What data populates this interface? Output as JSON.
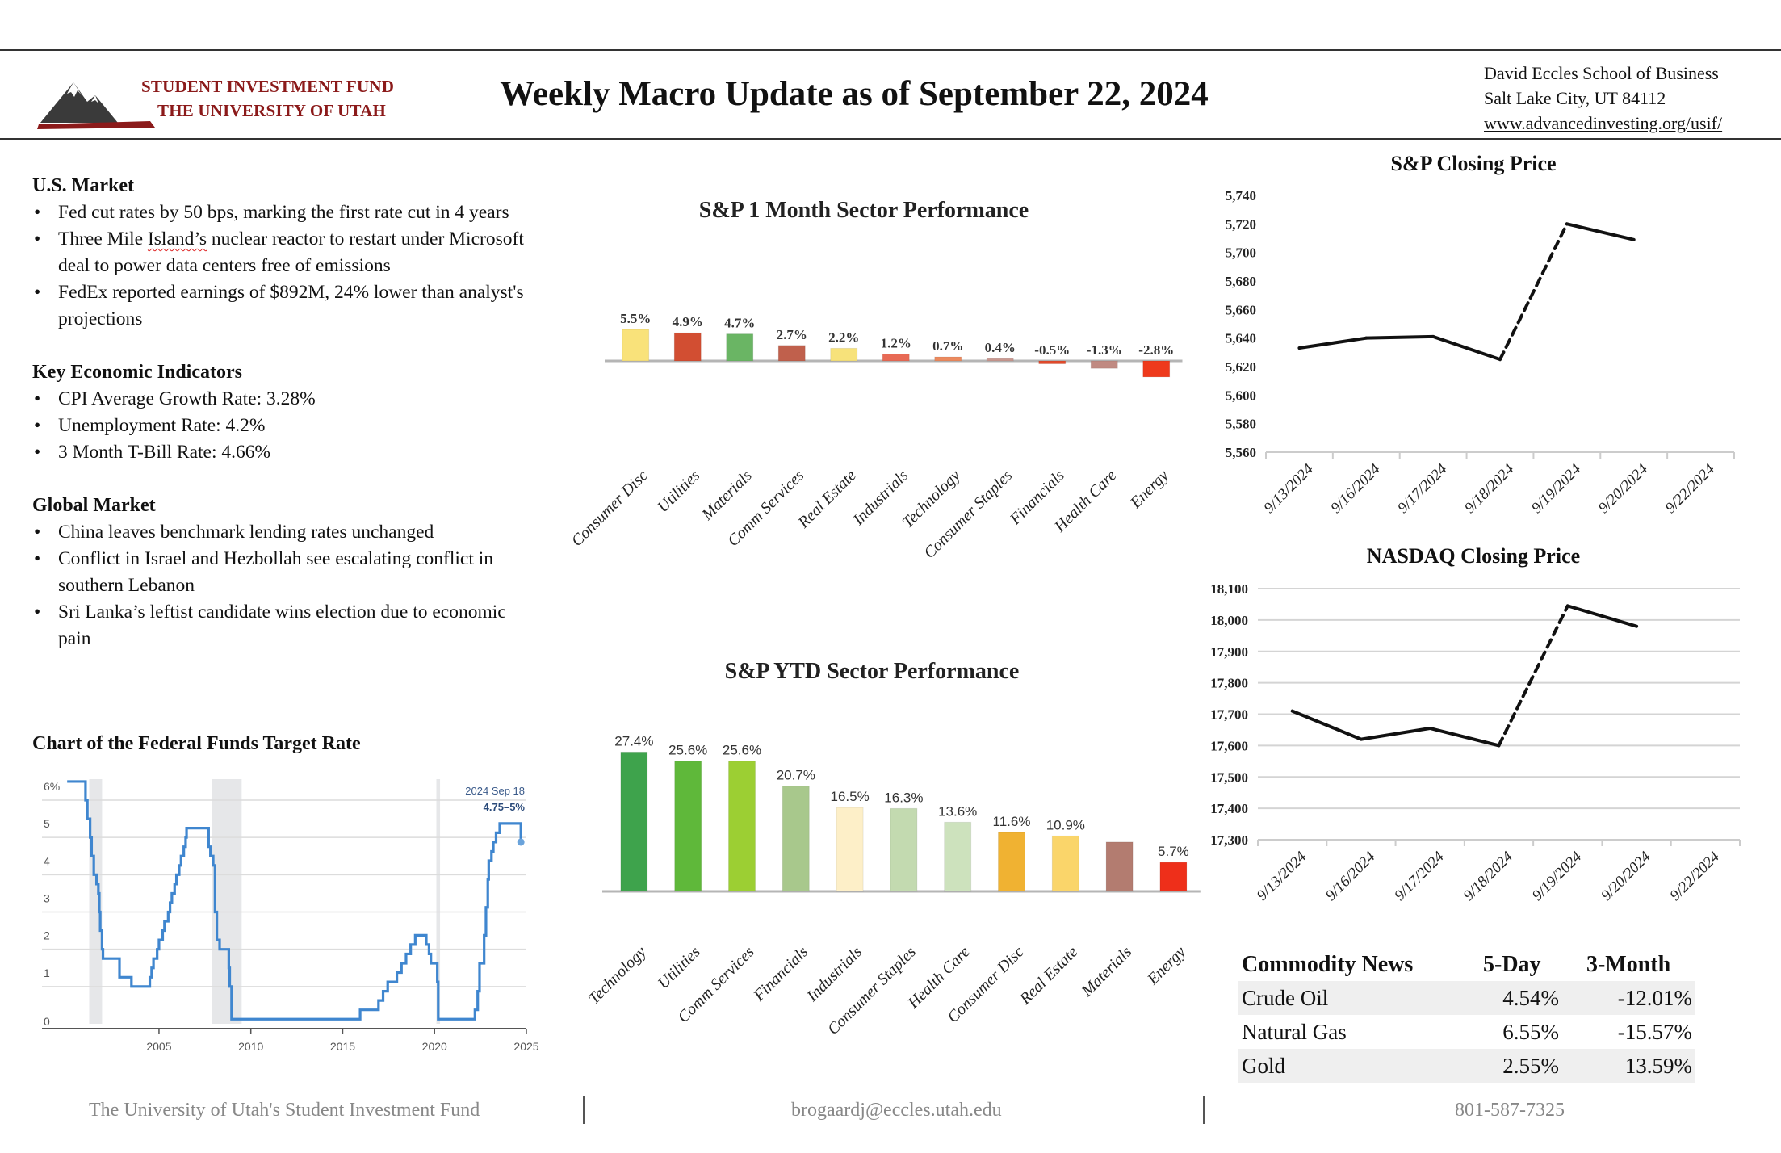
{
  "header": {
    "logo_line1": "STUDENT INVESTMENT FUND",
    "logo_line2": "THE UNIVERSITY OF UTAH",
    "title": "Weekly Macro Update as of September 22, 2024",
    "address_line1": "David Eccles School of Business",
    "address_line2": "Salt Lake City, UT 84112",
    "website": "www.advancedinvesting.org/usif/"
  },
  "us_market": {
    "title": "U.S. Market",
    "bullets": [
      "Fed cut rates by 50 bps, marking the first rate cut in 4 years",
      "Three Mile Island’s nuclear reactor to restart under Microsoft deal to power data centers free of emissions",
      "FedEx reported earnings of $892M, 24% lower than analyst's projections"
    ]
  },
  "indicators": {
    "title": "Key Economic Indicators",
    "bullets": [
      "CPI Average Growth Rate: 3.28%",
      "Unemployment Rate: 4.2%",
      "3 Month T-Bill Rate: 4.66%"
    ]
  },
  "global_market": {
    "title": "Global Market",
    "bullets": [
      "China leaves benchmark lending rates unchanged",
      "Conflict in Israel and Hezbollah see escalating conflict in southern Lebanon",
      "Sri Lanka’s leftist candidate wins election due to economic pain"
    ]
  },
  "commodity": {
    "headers": [
      "Commodity News",
      "5-Day",
      "3-Month"
    ],
    "rows": [
      {
        "name": "Crude Oil",
        "five_day": "4.54%",
        "three_month": "-12.01%"
      },
      {
        "name": "Natural Gas",
        "five_day": "6.55%",
        "three_month": "-15.57%"
      },
      {
        "name": "Gold",
        "five_day": "2.55%",
        "three_month": "13.59%"
      }
    ]
  },
  "footer": {
    "org": "The University of Utah's Student Investment Fund",
    "email": "brogaardj@eccles.utah.edu",
    "phone": "801-587-7325"
  },
  "colors": {
    "brand_red": "#8b1a1a",
    "fed_line": "#3f86cf",
    "recession_shade": "#e6e7e9"
  },
  "chart_data": [
    {
      "id": "m1",
      "type": "bar",
      "title": "S&P 1 Month Sector Performance",
      "categories": [
        "Consumer Disc",
        "Utilities",
        "Materials",
        "Comm Services",
        "Real Estate",
        "Industrials",
        "Technology",
        "Consumer Staples",
        "Financials",
        "Health Care",
        "Energy"
      ],
      "values": [
        5.5,
        4.9,
        4.7,
        2.7,
        2.2,
        1.2,
        0.7,
        0.4,
        -0.5,
        -1.3,
        -2.8
      ],
      "labels": [
        "5.5%",
        "4.9%",
        "4.7%",
        "2.7%",
        "2.2%",
        "1.2%",
        "0.7%",
        "0.4%",
        "-0.5%",
        "-1.3%",
        "-2.8%"
      ],
      "colors": [
        "#f9e27a",
        "#d24e32",
        "#6ab564",
        "#c0604c",
        "#f7e27a",
        "#e86a55",
        "#ec8a5e",
        "#c99890",
        "#e24a2b",
        "#c08a82",
        "#ee3a1c"
      ],
      "xlabel": "",
      "ylabel": "",
      "ylim": [
        -3,
        6
      ]
    },
    {
      "id": "ytd",
      "type": "bar",
      "title": "S&P YTD Sector Performance",
      "categories": [
        "Technology",
        "Utilities",
        "Comm Services",
        "Financials",
        "Industrials",
        "Consumer Staples",
        "Health Care",
        "Consumer Disc",
        "Real Estate",
        "Materials",
        "Energy"
      ],
      "values": [
        27.4,
        25.6,
        25.6,
        20.7,
        16.5,
        16.3,
        13.6,
        11.6,
        10.9,
        9.7,
        5.7
      ],
      "labels": [
        "27.4%",
        "25.6%",
        "25.6%",
        "20.7%",
        "16.5%",
        "16.3%",
        "13.6%",
        "11.6%",
        "10.9%",
        "",
        "5.7%"
      ],
      "colors": [
        "#3ea34c",
        "#5fb83a",
        "#9ccf33",
        "#a8c88c",
        "#fdefc8",
        "#c3dab0",
        "#cde2bd",
        "#f0b232",
        "#fad56a",
        "#b37c70",
        "#ee2f1a"
      ],
      "xlabel": "",
      "ylabel": "",
      "ylim": [
        0,
        28
      ]
    },
    {
      "id": "sp",
      "type": "line",
      "title": "S&P Closing Price",
      "x": [
        "9/13/2024",
        "9/16/2024",
        "9/17/2024",
        "9/18/2024",
        "9/19/2024",
        "9/20/2024",
        "9/22/2024"
      ],
      "values": [
        5633,
        5640,
        5641,
        5625,
        5720,
        5709,
        null
      ],
      "dashed_segments": [
        [
          3,
          4
        ]
      ],
      "ylim": [
        5560,
        5740
      ],
      "yticks": [
        "5,560",
        "5,580",
        "5,600",
        "5,620",
        "5,640",
        "5,660",
        "5,680",
        "5,700",
        "5,720",
        "5,740"
      ],
      "grid": false
    },
    {
      "id": "nq",
      "type": "line",
      "title": "NASDAQ Closing Price",
      "x": [
        "9/13/2024",
        "9/16/2024",
        "9/17/2024",
        "9/18/2024",
        "9/19/2024",
        "9/20/2024",
        "9/22/2024"
      ],
      "values": [
        17710,
        17620,
        17655,
        17600,
        18045,
        17980,
        null
      ],
      "dashed_segments": [
        [
          3,
          4
        ]
      ],
      "ylim": [
        17300,
        18100
      ],
      "yticks": [
        "17,300",
        "17,400",
        "17,500",
        "17,600",
        "17,700",
        "17,800",
        "17,900",
        "18,000",
        "18,100"
      ],
      "grid": true
    },
    {
      "id": "fed",
      "type": "line",
      "title": "Chart of the Federal Funds Target Rate",
      "xlim": [
        2000,
        2025
      ],
      "ylim": [
        0,
        6.5
      ],
      "yticks": [
        "0",
        "1",
        "2",
        "3",
        "4",
        "5",
        "6%"
      ],
      "xticks": [
        "2005",
        "2010",
        "2015",
        "2020",
        "2025"
      ],
      "recessions": [
        [
          2001.2,
          2001.9
        ],
        [
          2007.9,
          2009.5
        ],
        [
          2020.1,
          2020.3
        ]
      ],
      "annotation_date": "2024 Sep 18",
      "annotation_value": "4.75–5%",
      "steps": [
        [
          2000.0,
          6.5
        ],
        [
          2001.0,
          6.0
        ],
        [
          2001.1,
          5.5
        ],
        [
          2001.25,
          5.0
        ],
        [
          2001.33,
          4.5
        ],
        [
          2001.45,
          4.0
        ],
        [
          2001.6,
          3.75
        ],
        [
          2001.7,
          3.5
        ],
        [
          2001.75,
          3.0
        ],
        [
          2001.8,
          2.5
        ],
        [
          2001.9,
          2.0
        ],
        [
          2001.95,
          1.75
        ],
        [
          2002.85,
          1.25
        ],
        [
          2003.5,
          1.0
        ],
        [
          2004.5,
          1.25
        ],
        [
          2004.6,
          1.5
        ],
        [
          2004.7,
          1.75
        ],
        [
          2004.9,
          2.0
        ],
        [
          2005.0,
          2.25
        ],
        [
          2005.2,
          2.5
        ],
        [
          2005.3,
          2.75
        ],
        [
          2005.5,
          3.0
        ],
        [
          2005.6,
          3.25
        ],
        [
          2005.7,
          3.5
        ],
        [
          2005.85,
          3.75
        ],
        [
          2005.95,
          4.0
        ],
        [
          2006.1,
          4.25
        ],
        [
          2006.2,
          4.5
        ],
        [
          2006.35,
          4.75
        ],
        [
          2006.45,
          5.0
        ],
        [
          2006.5,
          5.25
        ],
        [
          2007.7,
          4.75
        ],
        [
          2007.8,
          4.5
        ],
        [
          2007.95,
          4.25
        ],
        [
          2008.05,
          3.0
        ],
        [
          2008.15,
          2.25
        ],
        [
          2008.3,
          2.0
        ],
        [
          2008.8,
          1.5
        ],
        [
          2008.85,
          1.0
        ],
        [
          2008.95,
          0.125
        ],
        [
          2015.95,
          0.375
        ],
        [
          2016.95,
          0.625
        ],
        [
          2017.2,
          0.875
        ],
        [
          2017.45,
          1.125
        ],
        [
          2017.95,
          1.375
        ],
        [
          2018.2,
          1.625
        ],
        [
          2018.45,
          1.875
        ],
        [
          2018.7,
          2.125
        ],
        [
          2018.95,
          2.375
        ],
        [
          2019.55,
          2.125
        ],
        [
          2019.7,
          1.875
        ],
        [
          2019.8,
          1.625
        ],
        [
          2020.15,
          1.125
        ],
        [
          2020.2,
          0.125
        ],
        [
          2022.2,
          0.375
        ],
        [
          2022.35,
          0.875
        ],
        [
          2022.45,
          1.625
        ],
        [
          2022.7,
          2.375
        ],
        [
          2022.8,
          3.125
        ],
        [
          2022.9,
          3.875
        ],
        [
          2022.95,
          4.375
        ],
        [
          2023.1,
          4.625
        ],
        [
          2023.2,
          4.875
        ],
        [
          2023.35,
          5.125
        ],
        [
          2023.55,
          5.375
        ],
        [
          2024.7,
          4.875
        ]
      ]
    }
  ]
}
